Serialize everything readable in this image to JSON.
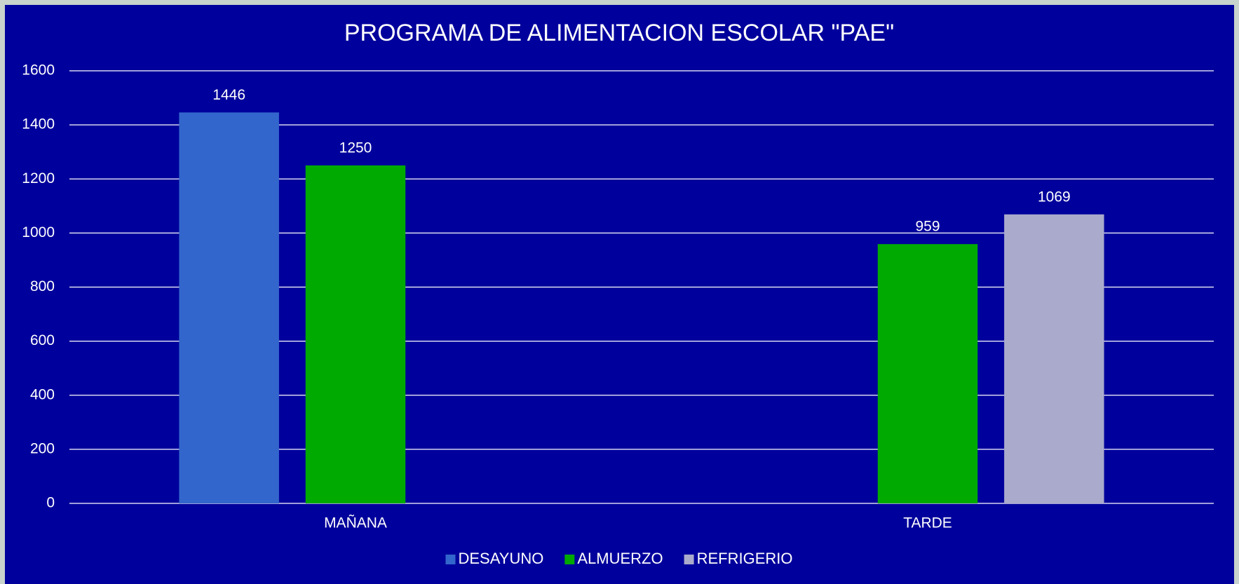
{
  "chart_data": {
    "type": "bar",
    "title": "PROGRAMA DE ALIMENTACION ESCOLAR \"PAE\"",
    "categories": [
      "MAÑANA",
      "TARDE"
    ],
    "series": [
      {
        "name": "DESAYUNO",
        "color": "#3366cc",
        "values": [
          1446,
          null
        ]
      },
      {
        "name": "ALMUERZO",
        "color": "#00aa00",
        "values": [
          1250,
          959
        ]
      },
      {
        "name": "REFRIGERIO",
        "color": "#aaaacc",
        "values": [
          null,
          1069
        ]
      }
    ],
    "ylim": [
      0,
      1600
    ],
    "yticks": [
      0,
      200,
      400,
      600,
      800,
      1000,
      1200,
      1400,
      1600
    ],
    "grid": true,
    "legend": "bottom"
  }
}
